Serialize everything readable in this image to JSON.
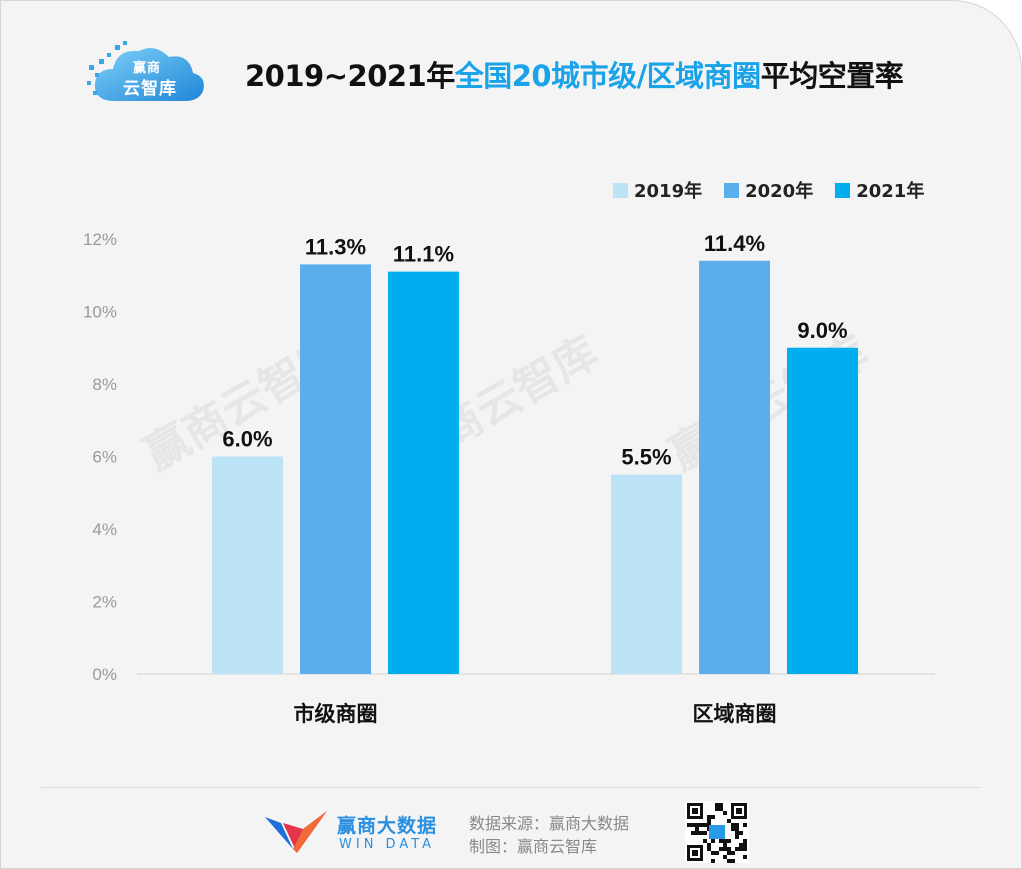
{
  "logo": {
    "line1": "赢商",
    "line2": "云智库"
  },
  "title": {
    "prefix": "2019~2021年",
    "highlight": "全国20城市级/区域商圈",
    "suffix": "平均空置率"
  },
  "colors": {
    "2019": "#bde3f6",
    "2020": "#5aaeec",
    "2021": "#00adee",
    "title_highlight": "#1aa3e8"
  },
  "watermark": "赢商云智库",
  "chart_data": {
    "type": "bar",
    "categories": [
      "市级商圈",
      "区域商圈"
    ],
    "series": [
      {
        "name": "2019年",
        "values": [
          6.0,
          5.5
        ],
        "labels": [
          "6.0%",
          "5.5%"
        ]
      },
      {
        "name": "2020年",
        "values": [
          11.3,
          11.4
        ],
        "labels": [
          "11.3%",
          "11.4%"
        ]
      },
      {
        "name": "2021年",
        "values": [
          11.1,
          9.0
        ],
        "labels": [
          "11.1%",
          "9.0%"
        ]
      }
    ],
    "yticks": [
      "0%",
      "2%",
      "4%",
      "6%",
      "8%",
      "10%",
      "12%"
    ],
    "ylim": [
      0,
      12
    ],
    "title": "2019~2021年全国20城市级/区域商圈平均空置率",
    "legend_position": "top-right",
    "grid": false
  },
  "footer": {
    "brand_name": "赢商大数据",
    "brand_sub": "WIN DATA",
    "source_line": "数据来源：赢商大数据",
    "credit_line": "制图：赢商云智库"
  }
}
